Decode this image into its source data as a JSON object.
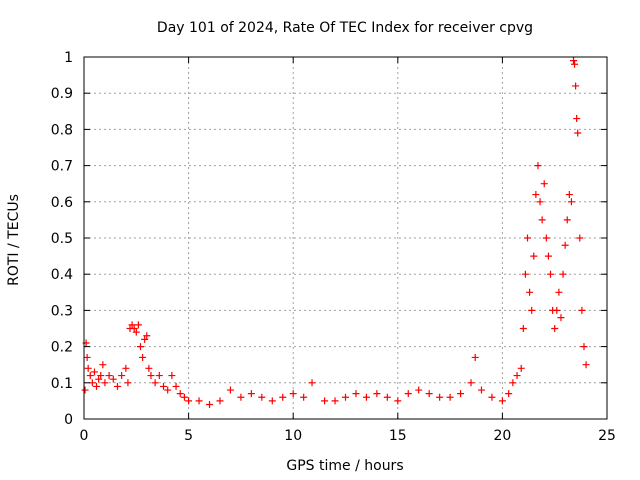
{
  "chart_data": {
    "type": "scatter",
    "title": "Day 101 of 2024, Rate Of TEC Index for receiver cpvg",
    "xlabel": "GPS time / hours",
    "ylabel": "ROTI / TECUs",
    "xlim": [
      0,
      25
    ],
    "ylim": [
      0,
      1
    ],
    "x_ticks": [
      "0",
      "5",
      "10",
      "15",
      "20",
      "25"
    ],
    "y_ticks": [
      "0",
      "0.1",
      "0.2",
      "0.3",
      "0.4",
      "0.5",
      "0.6",
      "0.7",
      "0.8",
      "0.9",
      "1"
    ],
    "grid": true,
    "marker": "+",
    "color": "#ff0000",
    "series": [
      {
        "points": [
          [
            0.05,
            0.08
          ],
          [
            0.1,
            0.21
          ],
          [
            0.15,
            0.17
          ],
          [
            0.2,
            0.14
          ],
          [
            0.3,
            0.12
          ],
          [
            0.4,
            0.1
          ],
          [
            0.5,
            0.13
          ],
          [
            0.6,
            0.09
          ],
          [
            0.7,
            0.11
          ],
          [
            0.8,
            0.12
          ],
          [
            0.9,
            0.15
          ],
          [
            1.0,
            0.1
          ],
          [
            1.2,
            0.12
          ],
          [
            1.4,
            0.11
          ],
          [
            1.6,
            0.09
          ],
          [
            1.8,
            0.12
          ],
          [
            2.0,
            0.14
          ],
          [
            2.1,
            0.1
          ],
          [
            2.2,
            0.25
          ],
          [
            2.3,
            0.26
          ],
          [
            2.4,
            0.25
          ],
          [
            2.5,
            0.24
          ],
          [
            2.6,
            0.26
          ],
          [
            2.7,
            0.2
          ],
          [
            2.8,
            0.17
          ],
          [
            2.9,
            0.22
          ],
          [
            3.0,
            0.23
          ],
          [
            3.1,
            0.14
          ],
          [
            3.2,
            0.12
          ],
          [
            3.4,
            0.1
          ],
          [
            3.6,
            0.12
          ],
          [
            3.8,
            0.09
          ],
          [
            4.0,
            0.08
          ],
          [
            4.2,
            0.12
          ],
          [
            4.4,
            0.09
          ],
          [
            4.6,
            0.07
          ],
          [
            4.8,
            0.06
          ],
          [
            5.0,
            0.05
          ],
          [
            5.5,
            0.05
          ],
          [
            6.0,
            0.04
          ],
          [
            6.5,
            0.05
          ],
          [
            7.0,
            0.08
          ],
          [
            7.5,
            0.06
          ],
          [
            8.0,
            0.07
          ],
          [
            8.5,
            0.06
          ],
          [
            9.0,
            0.05
          ],
          [
            9.5,
            0.06
          ],
          [
            10.0,
            0.07
          ],
          [
            10.5,
            0.06
          ],
          [
            10.9,
            0.1
          ],
          [
            11.5,
            0.05
          ],
          [
            12.0,
            0.05
          ],
          [
            12.5,
            0.06
          ],
          [
            13.0,
            0.07
          ],
          [
            13.5,
            0.06
          ],
          [
            14.0,
            0.07
          ],
          [
            14.5,
            0.06
          ],
          [
            15.0,
            0.05
          ],
          [
            15.5,
            0.07
          ],
          [
            16.0,
            0.08
          ],
          [
            16.5,
            0.07
          ],
          [
            17.0,
            0.06
          ],
          [
            17.5,
            0.06
          ],
          [
            18.0,
            0.07
          ],
          [
            18.5,
            0.1
          ],
          [
            18.7,
            0.17
          ],
          [
            19.0,
            0.08
          ],
          [
            19.5,
            0.06
          ],
          [
            20.0,
            0.05
          ],
          [
            20.3,
            0.07
          ],
          [
            20.5,
            0.1
          ],
          [
            20.7,
            0.12
          ],
          [
            20.9,
            0.14
          ],
          [
            21.0,
            0.25
          ],
          [
            21.1,
            0.4
          ],
          [
            21.2,
            0.5
          ],
          [
            21.3,
            0.35
          ],
          [
            21.4,
            0.3
          ],
          [
            21.5,
            0.45
          ],
          [
            21.6,
            0.62
          ],
          [
            21.7,
            0.7
          ],
          [
            21.8,
            0.6
          ],
          [
            21.9,
            0.55
          ],
          [
            22.0,
            0.65
          ],
          [
            22.1,
            0.5
          ],
          [
            22.2,
            0.45
          ],
          [
            22.3,
            0.4
          ],
          [
            22.4,
            0.3
          ],
          [
            22.5,
            0.25
          ],
          [
            22.6,
            0.3
          ],
          [
            22.7,
            0.35
          ],
          [
            22.8,
            0.28
          ],
          [
            22.9,
            0.4
          ],
          [
            23.0,
            0.48
          ],
          [
            23.1,
            0.55
          ],
          [
            23.2,
            0.62
          ],
          [
            23.3,
            0.6
          ],
          [
            23.4,
            0.99
          ],
          [
            23.45,
            0.98
          ],
          [
            23.5,
            0.92
          ],
          [
            23.55,
            0.83
          ],
          [
            23.6,
            0.79
          ],
          [
            23.7,
            0.5
          ],
          [
            23.8,
            0.3
          ],
          [
            23.9,
            0.2
          ],
          [
            24.0,
            0.15
          ]
        ]
      }
    ]
  }
}
